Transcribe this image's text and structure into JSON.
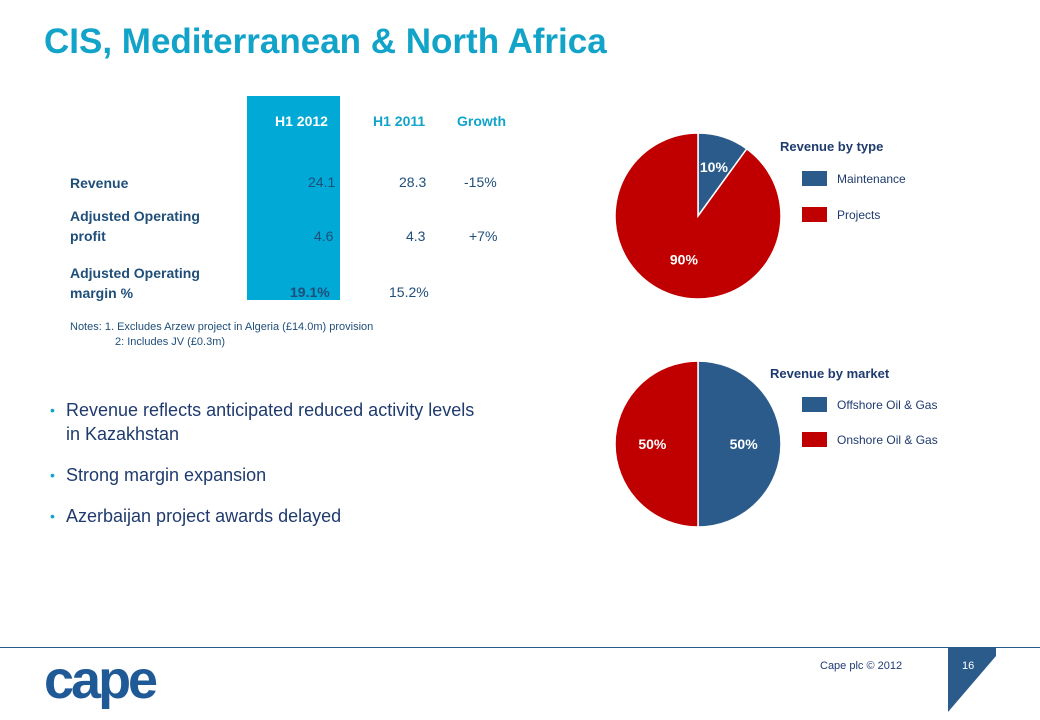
{
  "title": "CIS, Mediterranean & North Africa",
  "table": {
    "headers": [
      "H1 2012",
      "H1 2011",
      "Growth"
    ],
    "rows": [
      {
        "label_line1": "Revenue",
        "label_line2": "",
        "h1_2012": "24.1",
        "h1_2011": "28.3",
        "growth": "-15%"
      },
      {
        "label_line1": "Adjusted Operating",
        "label_line2": "profit",
        "h1_2012": "4.6",
        "h1_2011": "4.3",
        "growth": "+7%"
      },
      {
        "label_line1": "Adjusted Operating",
        "label_line2": "margin %",
        "h1_2012": "19.1%",
        "h1_2011": "15.2%",
        "growth": ""
      }
    ]
  },
  "notes": {
    "line1": "Notes: 1. Excludes Arzew project in Algeria (£14.0m) provision",
    "line2": "2: Includes JV (£0.3m)"
  },
  "bullets": [
    {
      "line1": "Revenue reflects anticipated reduced activity levels",
      "line2": "in Kazakhstan"
    },
    {
      "line1": "Strong margin expansion",
      "line2": ""
    },
    {
      "line1": "Azerbaijan project awards delayed",
      "line2": ""
    }
  ],
  "chart_data": [
    {
      "type": "pie",
      "title": "Revenue by type",
      "categories": [
        "Maintenance",
        "Projects"
      ],
      "values": [
        10,
        90
      ],
      "labels": [
        "10%",
        "90%"
      ],
      "colors": [
        "#2b5b8a",
        "#c00000"
      ],
      "legend": "right"
    },
    {
      "type": "pie",
      "title": "Revenue by market",
      "categories": [
        "Offshore Oil & Gas",
        "Onshore Oil & Gas"
      ],
      "values": [
        50,
        50
      ],
      "labels": [
        "50%",
        "50%"
      ],
      "colors": [
        "#2b5b8a",
        "#c00000"
      ],
      "legend": "right"
    }
  ],
  "footer": {
    "copyright": "Cape plc © 2012",
    "page_number": "16"
  },
  "logo": {
    "text": "cape"
  },
  "colors": {
    "accent": "#12a3c9",
    "navy": "#1f4e79",
    "dark_blue": "#2b5b8a",
    "red": "#c00000"
  }
}
